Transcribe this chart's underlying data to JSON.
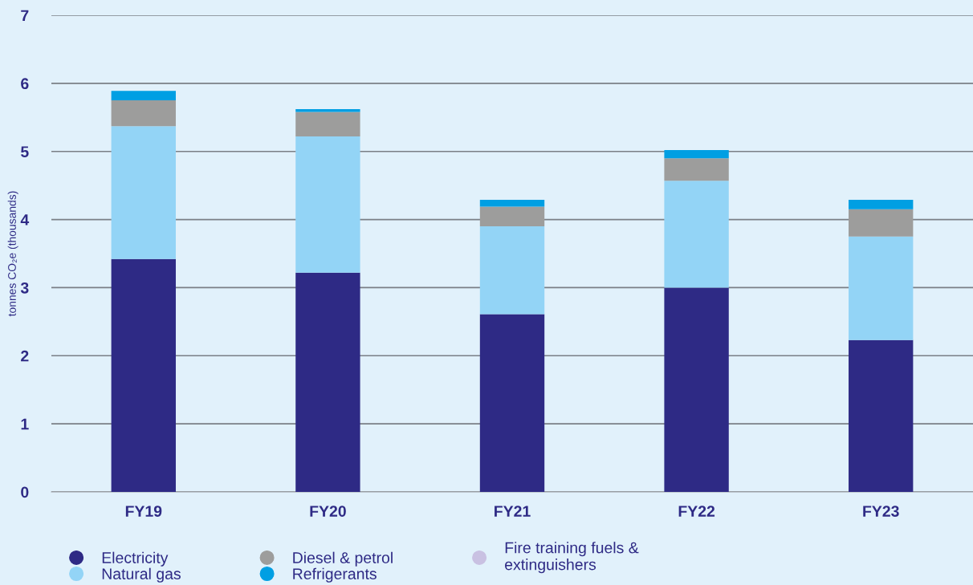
{
  "chart_data": {
    "type": "bar",
    "stacked": true,
    "ylabel": "tonnes CO₂e (thousands)",
    "categories": [
      "FY19",
      "FY20",
      "FY21",
      "FY22",
      "FY23"
    ],
    "series": [
      {
        "name": "Electricity",
        "color": "#2e2a85",
        "values": [
          3.42,
          3.22,
          2.61,
          3.0,
          2.23
        ]
      },
      {
        "name": "Natural gas",
        "color": "#93d4f6",
        "values": [
          1.95,
          2.0,
          1.29,
          1.57,
          1.52
        ]
      },
      {
        "name": "Diesel & petrol",
        "color": "#9d9d9c",
        "values": [
          0.38,
          0.36,
          0.29,
          0.33,
          0.4
        ]
      },
      {
        "name": "Refrigerants",
        "color": "#009fe3",
        "values": [
          0.14,
          0.04,
          0.1,
          0.12,
          0.14
        ]
      },
      {
        "name": "Fire training fuels &\nextinguishers",
        "color": "#c9c1e2",
        "values": [
          null,
          null,
          null,
          null,
          null
        ]
      }
    ],
    "ylim": [
      0,
      7
    ],
    "yticks": [
      0,
      1,
      2,
      3,
      4,
      5,
      6,
      7
    ],
    "grid": "y",
    "legend": "bottom left"
  }
}
